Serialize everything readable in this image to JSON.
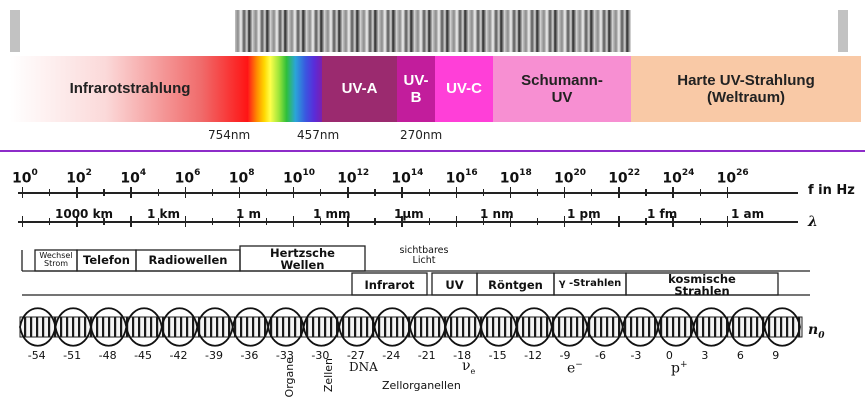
{
  "top_bands": {
    "infrarot": "Infrarotstrahlung",
    "uva": "UV-A",
    "uvb": "UV-\nB",
    "uvc": "UV-C",
    "schumann": "Schumann-\nUV",
    "harte": "Harte UV-Strahlung\n(Weltraum)"
  },
  "wavelength_marks": [
    "754nm",
    "457nm",
    "270nm"
  ],
  "frequency_axis": {
    "unit_label": "f in Hz",
    "exponents": [
      "0",
      "2",
      "4",
      "6",
      "8",
      "10",
      "12",
      "14",
      "16",
      "18",
      "20",
      "22",
      "24",
      "26"
    ]
  },
  "lambda_axis": {
    "symbol": "λ",
    "labels": [
      "1000 km",
      "1 km",
      "1 m",
      "1 mm",
      "1μm",
      "1 nm",
      "1 pm",
      "1 fm",
      "1 am"
    ]
  },
  "upper_boxes": {
    "wechselstrom": "Wechsel\nStrom",
    "telefon": "Telefon",
    "radiowellen": "Radiowellen",
    "hertzsche": "Hertzsche\nWellen",
    "sichtbares": "sichtbares\nLicht"
  },
  "lower_boxes": {
    "infrarot": "Infrarot",
    "uv": "UV",
    "roentgen": "Röntgen",
    "gamma": "γ -Strahlen",
    "kosmisch": "kosmische\nStrahlen"
  },
  "n0_axis": {
    "symbol": "n",
    "subscript": "0",
    "ticks": [
      "-54",
      "-51",
      "-48",
      "-45",
      "-42",
      "-39",
      "-36",
      "-33",
      "-30",
      "-27",
      "-24",
      "-21",
      "-18",
      "-15",
      "-12",
      "-9",
      "-6",
      "-3",
      "0",
      "3",
      "6",
      "9"
    ]
  },
  "objects": {
    "organe": "Organe",
    "zellen": "Zellen",
    "dna": "DNA",
    "neutrino": "ν",
    "neutrino_sub": "e",
    "electron": "e",
    "electron_sup": "−",
    "proton": "p",
    "proton_sup": "+",
    "zellorganellen": "Zellorganellen"
  }
}
